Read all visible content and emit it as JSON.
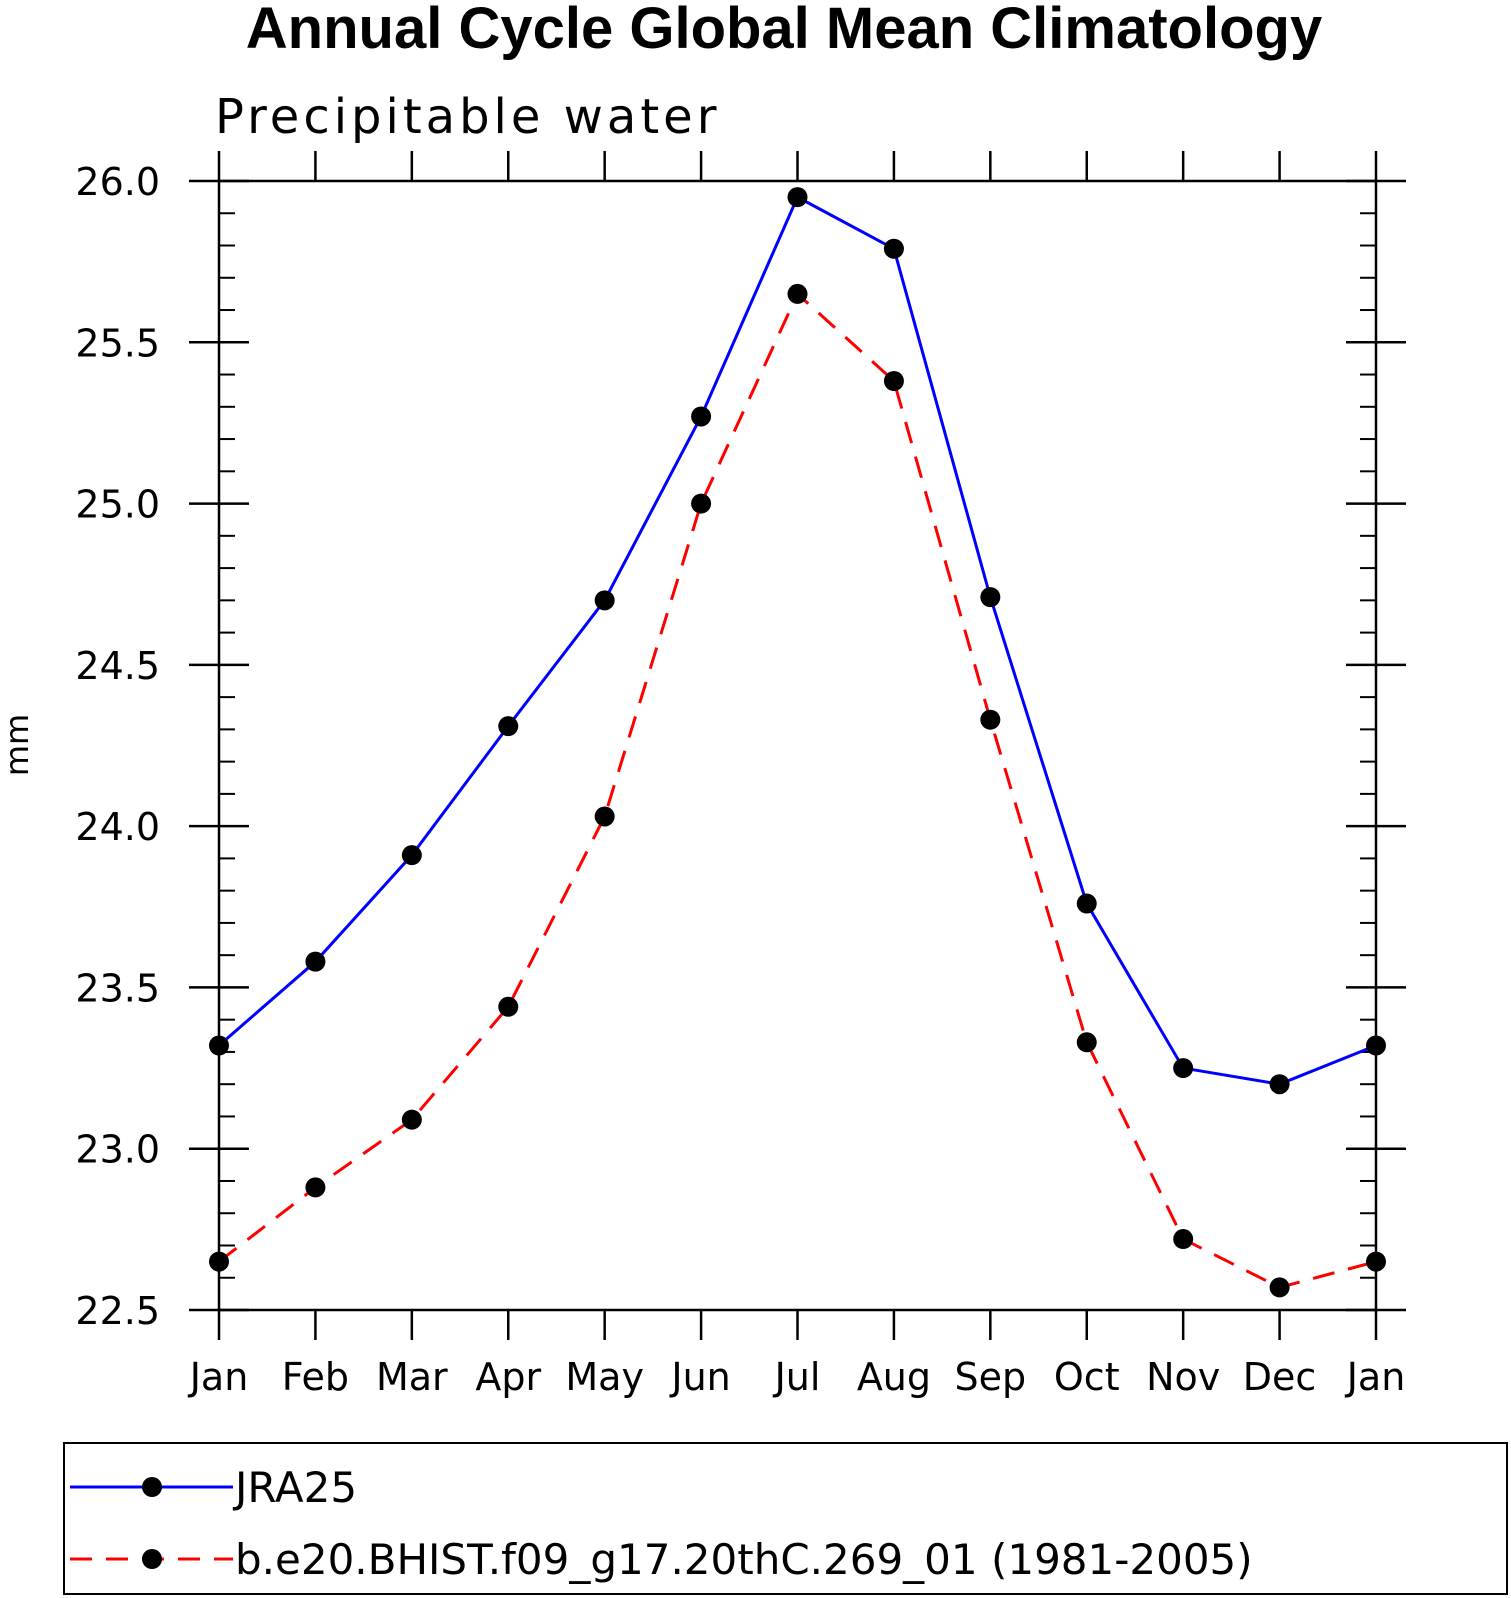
{
  "chart_data": {
    "type": "line",
    "title": "Annual Cycle Global Mean Climatology",
    "subtitle": "Precipitable water",
    "xlabel": "",
    "ylabel": "mm",
    "categories": [
      "Jan",
      "Feb",
      "Mar",
      "Apr",
      "May",
      "Jun",
      "Jul",
      "Aug",
      "Sep",
      "Oct",
      "Nov",
      "Dec",
      "Jan"
    ],
    "ylim": [
      22.5,
      26.0
    ],
    "yticks": [
      "22.5",
      "23.0",
      "23.5",
      "24.0",
      "24.5",
      "25.0",
      "25.5",
      "26.0"
    ],
    "ytick_values": [
      22.5,
      23.0,
      23.5,
      24.0,
      24.5,
      25.0,
      25.5,
      26.0
    ],
    "grid": false,
    "legend_position": "bottom",
    "series": [
      {
        "name": "JRA25",
        "color": "#0000ff",
        "line_style": "solid",
        "marker": "filled-circle",
        "values": [
          23.32,
          23.58,
          23.91,
          24.31,
          24.7,
          25.27,
          25.95,
          25.79,
          24.71,
          23.76,
          23.25,
          23.2,
          23.32
        ]
      },
      {
        "name": "b.e20.BHIST.f09_g17.20thC.269_01 (1981-2005)",
        "color": "#ff0000",
        "line_style": "dashed",
        "marker": "filled-circle",
        "values": [
          22.65,
          22.88,
          23.09,
          23.44,
          24.03,
          25.0,
          25.65,
          25.38,
          24.33,
          23.33,
          22.72,
          22.57,
          22.65
        ]
      }
    ]
  }
}
